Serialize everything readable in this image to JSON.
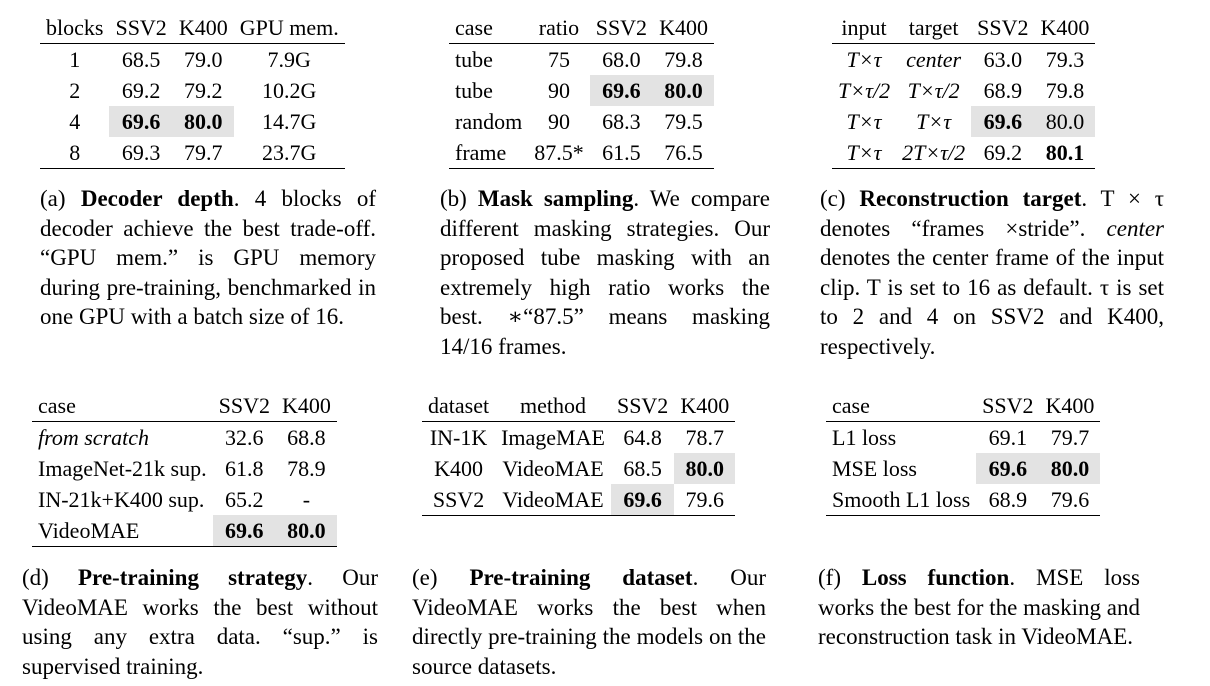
{
  "tables": {
    "a": {
      "headers": [
        "blocks",
        "SSV2",
        "K400",
        "GPU mem."
      ],
      "rows": [
        [
          "1",
          "68.5",
          "79.0",
          "7.9G"
        ],
        [
          "2",
          "69.2",
          "79.2",
          "10.2G"
        ],
        [
          "4",
          "69.6",
          "80.0",
          "14.7G"
        ],
        [
          "8",
          "69.3",
          "79.7",
          "23.7G"
        ]
      ],
      "caption_label": "(a)",
      "caption_title": "Decoder depth",
      "caption_text": ". 4 blocks of decoder achieve the best trade-off. “GPU mem.” is GPU memory during pre-training, benchmarked in one GPU with a batch size of 16."
    },
    "b": {
      "headers": [
        "case",
        "ratio",
        "SSV2",
        "K400"
      ],
      "rows": [
        [
          "tube",
          "75",
          "68.0",
          "79.8"
        ],
        [
          "tube",
          "90",
          "69.6",
          "80.0"
        ],
        [
          "random",
          "90",
          "68.3",
          "79.5"
        ],
        [
          "frame",
          "87.5*",
          "61.5",
          "76.5"
        ]
      ],
      "caption_label": "(b)",
      "caption_title": "Mask sampling",
      "caption_text": ". We compare different masking strategies. Our proposed tube masking with an extremely high ratio works the best. ∗“87.5” means masking 14/16 frames."
    },
    "c": {
      "headers": [
        "input",
        "target",
        "SSV2",
        "K400"
      ],
      "rows": [
        [
          "T×τ",
          "center",
          "63.0",
          "79.3"
        ],
        [
          "T×τ/2",
          "T×τ/2",
          "68.9",
          "79.8"
        ],
        [
          "T×τ",
          "T×τ",
          "69.6",
          "80.0"
        ],
        [
          "T×τ",
          "2T×τ/2",
          "69.2",
          "80.1"
        ]
      ],
      "caption_label": "(c)",
      "caption_title": "Reconstruction target",
      "caption_p1": ". T × τ denotes “frames ×stride”. ",
      "caption_center": "center",
      "caption_p2": " denotes the center frame of the input clip. T is set to 16 as default. τ is set to 2 and 4 on SSV2 and K400, respectively."
    },
    "d": {
      "headers": [
        "case",
        "SSV2",
        "K400"
      ],
      "rows": [
        [
          "from scratch",
          "32.6",
          "68.8"
        ],
        [
          "ImageNet-21k sup.",
          "61.8",
          "78.9"
        ],
        [
          "IN-21k+K400 sup.",
          "65.2",
          "-"
        ],
        [
          "VideoMAE",
          "69.6",
          "80.0"
        ]
      ],
      "caption_label": "(d)",
      "caption_title": "Pre-training strategy",
      "caption_text": ". Our VideoMAE works the best without using any extra data. “sup.” is supervised training."
    },
    "e": {
      "headers": [
        "dataset",
        "method",
        "SSV2",
        "K400"
      ],
      "rows": [
        [
          "IN-1K",
          "ImageMAE",
          "64.8",
          "78.7"
        ],
        [
          "K400",
          "VideoMAE",
          "68.5",
          "80.0"
        ],
        [
          "SSV2",
          "VideoMAE",
          "69.6",
          "79.6"
        ]
      ],
      "caption_label": "(e)",
      "caption_title": "Pre-training dataset",
      "caption_text": ". Our VideoMAE works the best when directly pre-training the models on the source datasets."
    },
    "f": {
      "headers": [
        "case",
        "SSV2",
        "K400"
      ],
      "rows": [
        [
          "L1 loss",
          "69.1",
          "79.7"
        ],
        [
          "MSE loss",
          "69.6",
          "80.0"
        ],
        [
          "Smooth L1 loss",
          "68.9",
          "79.6"
        ]
      ],
      "caption_label": "(f)",
      "caption_title": "Loss function",
      "caption_text": ". MSE loss works the best for the masking and reconstruction task in VideoMAE."
    }
  }
}
